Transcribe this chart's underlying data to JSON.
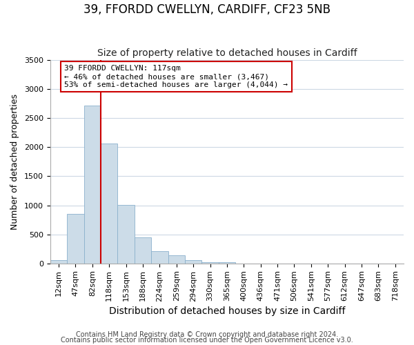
{
  "title1": "39, FFORDD CWELLYN, CARDIFF, CF23 5NB",
  "title2": "Size of property relative to detached houses in Cardiff",
  "xlabel": "Distribution of detached houses by size in Cardiff",
  "ylabel": "Number of detached properties",
  "bin_labels": [
    "12sqm",
    "47sqm",
    "82sqm",
    "118sqm",
    "153sqm",
    "188sqm",
    "224sqm",
    "259sqm",
    "294sqm",
    "330sqm",
    "365sqm",
    "400sqm",
    "436sqm",
    "471sqm",
    "506sqm",
    "541sqm",
    "577sqm",
    "612sqm",
    "647sqm",
    "683sqm",
    "718sqm"
  ],
  "bar_values": [
    50,
    850,
    2720,
    2060,
    1010,
    450,
    210,
    145,
    50,
    25,
    15,
    0,
    0,
    0,
    0,
    0,
    0,
    0,
    0,
    0,
    0
  ],
  "bar_color": "#ccdce8",
  "bar_edge_color": "#8ab0cc",
  "vline_color": "#cc0000",
  "annotation_line1": "39 FFORDD CWELLYN: 117sqm",
  "annotation_line2": "← 46% of detached houses are smaller (3,467)",
  "annotation_line3": "53% of semi-detached houses are larger (4,044) →",
  "annotation_box_edgecolor": "#cc0000",
  "annotation_box_facecolor": "#ffffff",
  "ylim": [
    0,
    3500
  ],
  "yticks": [
    0,
    500,
    1000,
    1500,
    2000,
    2500,
    3000,
    3500
  ],
  "footer1": "Contains HM Land Registry data © Crown copyright and database right 2024.",
  "footer2": "Contains public sector information licensed under the Open Government Licence v3.0.",
  "bg_color": "#ffffff",
  "grid_color": "#ccd8e4",
  "title1_fontsize": 12,
  "title2_fontsize": 10,
  "xlabel_fontsize": 10,
  "ylabel_fontsize": 9,
  "tick_fontsize": 8,
  "annotation_fontsize": 8,
  "footer_fontsize": 7
}
